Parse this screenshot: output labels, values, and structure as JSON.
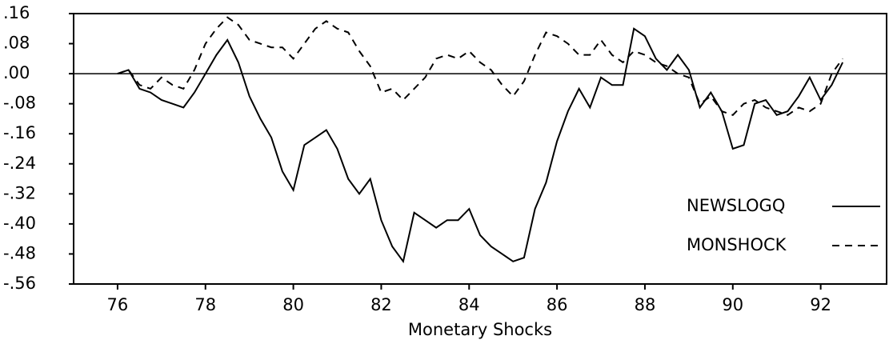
{
  "chart_data": {
    "type": "line",
    "x_label": "Monetary Shocks",
    "x": [
      76.0,
      76.25,
      76.5,
      76.75,
      77.0,
      77.25,
      77.5,
      77.75,
      78.0,
      78.25,
      78.5,
      78.75,
      79.0,
      79.25,
      79.5,
      79.75,
      80.0,
      80.25,
      80.5,
      80.75,
      81.0,
      81.25,
      81.5,
      81.75,
      82.0,
      82.25,
      82.5,
      82.75,
      83.0,
      83.25,
      83.5,
      83.75,
      84.0,
      84.25,
      84.5,
      84.75,
      85.0,
      85.25,
      85.5,
      85.75,
      86.0,
      86.25,
      86.5,
      86.75,
      87.0,
      87.25,
      87.5,
      87.75,
      88.0,
      88.25,
      88.5,
      88.75,
      89.0,
      89.25,
      89.5,
      89.75,
      90.0,
      90.25,
      90.5,
      90.75,
      91.0,
      91.25,
      91.5,
      91.75,
      92.0,
      92.25,
      92.5
    ],
    "series": [
      {
        "name": "NEWSLOGQ",
        "color": "#000000",
        "line_style": "solid",
        "values": [
          0.0,
          0.01,
          -0.04,
          -0.05,
          -0.07,
          -0.08,
          -0.09,
          -0.05,
          0.0,
          0.05,
          0.09,
          0.03,
          -0.06,
          -0.12,
          -0.17,
          -0.26,
          -0.31,
          -0.19,
          -0.17,
          -0.15,
          -0.2,
          -0.28,
          -0.32,
          -0.28,
          -0.39,
          -0.46,
          -0.5,
          -0.37,
          -0.39,
          -0.41,
          -0.39,
          -0.39,
          -0.36,
          -0.43,
          -0.46,
          -0.48,
          -0.5,
          -0.49,
          -0.36,
          -0.29,
          -0.18,
          -0.1,
          -0.04,
          -0.09,
          -0.01,
          -0.03,
          -0.03,
          0.12,
          0.1,
          0.04,
          0.01,
          0.05,
          0.01,
          -0.09,
          -0.05,
          -0.1,
          -0.2,
          -0.19,
          -0.08,
          -0.07,
          -0.11,
          -0.1,
          -0.06,
          -0.01,
          -0.07,
          -0.03,
          0.03
        ]
      },
      {
        "name": "MONSHOCK",
        "color": "#000000",
        "line_style": "dashed",
        "values": [
          0.0,
          0.01,
          -0.03,
          -0.04,
          -0.01,
          -0.03,
          -0.04,
          0.01,
          0.08,
          0.12,
          0.15,
          0.13,
          0.09,
          0.08,
          0.07,
          0.07,
          0.04,
          0.08,
          0.12,
          0.14,
          0.12,
          0.11,
          0.06,
          0.02,
          -0.05,
          -0.04,
          -0.07,
          -0.04,
          -0.01,
          0.04,
          0.05,
          0.04,
          0.06,
          0.03,
          0.01,
          -0.03,
          -0.06,
          -0.02,
          0.05,
          0.11,
          0.1,
          0.08,
          0.05,
          0.05,
          0.09,
          0.05,
          0.03,
          0.06,
          0.05,
          0.03,
          0.02,
          0.0,
          -0.01,
          -0.08,
          -0.06,
          -0.1,
          -0.11,
          -0.08,
          -0.07,
          -0.09,
          -0.1,
          -0.11,
          -0.09,
          -0.1,
          -0.08,
          0.0,
          0.04
        ]
      }
    ],
    "xlim": [
      75,
      93.5
    ],
    "xticks": [
      76,
      78,
      80,
      82,
      84,
      86,
      88,
      90,
      92
    ],
    "ylim": [
      -0.56,
      0.16
    ],
    "yticks": [
      {
        "value": 0.16,
        "label": ".16"
      },
      {
        "value": 0.08,
        "label": ".08"
      },
      {
        "value": 0,
        "label": ".00"
      },
      {
        "value": -0.08,
        "label": "-.08"
      },
      {
        "value": -0.16,
        "label": "-.16"
      },
      {
        "value": -0.24,
        "label": "-.24"
      },
      {
        "value": -0.32,
        "label": "-.32"
      },
      {
        "value": -0.4,
        "label": "-.40"
      },
      {
        "value": -0.48,
        "label": "-.48"
      },
      {
        "value": -0.56,
        "label": "-.56"
      }
    ],
    "zero_line": true,
    "grid": false,
    "legend": "lower right"
  }
}
